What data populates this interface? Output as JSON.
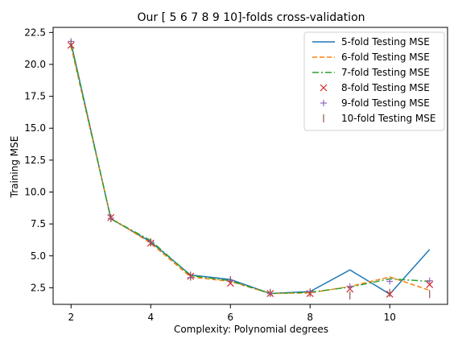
{
  "chart_data": {
    "type": "line",
    "title": "Our [ 5  6  7  8  9 10]-folds cross-validation",
    "xlabel": "Complexity: Polynomial degrees",
    "ylabel": "Training MSE",
    "xlim": [
      1.55,
      11.45
    ],
    "ylim": [
      1.2,
      22.9
    ],
    "xticks": [
      2,
      4,
      6,
      8,
      10
    ],
    "yticks": [
      2.5,
      5.0,
      7.5,
      10.0,
      12.5,
      15.0,
      17.5,
      20.0,
      22.5
    ],
    "ytick_labels": [
      "2.5",
      "5.0",
      "7.5",
      "10.0",
      "12.5",
      "15.0",
      "17.5",
      "20.0",
      "22.5"
    ],
    "grid": false,
    "legend_position": "top-right",
    "x": [
      2,
      3,
      4,
      5,
      6,
      7,
      8,
      9,
      10,
      11
    ],
    "series": [
      {
        "name": "5-fold Testing MSE",
        "style": "solid-line",
        "color": "#1f77b4",
        "values": [
          21.7,
          7.9,
          6.1,
          3.5,
          3.15,
          2.05,
          2.2,
          3.9,
          2.0,
          5.5
        ]
      },
      {
        "name": "6-fold Testing MSE",
        "style": "dashed-line",
        "color": "#ff7f0e",
        "values": [
          21.4,
          7.95,
          6.0,
          3.35,
          3.0,
          2.05,
          2.1,
          2.6,
          3.35,
          2.3
        ]
      },
      {
        "name": "7-fold Testing MSE",
        "style": "dashdot-line",
        "color": "#2ca02c",
        "values": [
          21.6,
          7.9,
          6.2,
          3.45,
          3.05,
          2.05,
          2.15,
          2.55,
          3.2,
          3.0
        ]
      },
      {
        "name": "8-fold Testing MSE",
        "style": "x-marker",
        "color": "#d62728",
        "values": [
          21.5,
          8.0,
          6.0,
          3.4,
          2.85,
          2.05,
          2.05,
          2.4,
          2.0,
          2.75
        ]
      },
      {
        "name": "9-fold Testing MSE",
        "style": "plus-marker",
        "color": "#9467bd",
        "values": [
          21.8,
          7.95,
          6.1,
          3.3,
          3.05,
          2.05,
          2.2,
          2.6,
          3.0,
          3.05
        ]
      },
      {
        "name": "10-fold Testing MSE",
        "style": "vline-marker",
        "color": "#8c564b",
        "values": [
          21.6,
          7.95,
          6.05,
          3.45,
          3.1,
          2.1,
          2.1,
          1.9,
          2.1,
          2.0
        ]
      }
    ]
  }
}
